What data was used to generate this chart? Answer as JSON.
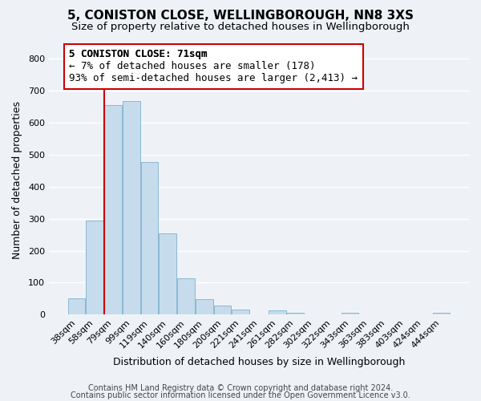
{
  "title": "5, CONISTON CLOSE, WELLINGBOROUGH, NN8 3XS",
  "subtitle": "Size of property relative to detached houses in Wellingborough",
  "xlabel": "Distribution of detached houses by size in Wellingborough",
  "ylabel": "Number of detached properties",
  "bar_labels": [
    "38sqm",
    "58sqm",
    "79sqm",
    "99sqm",
    "119sqm",
    "140sqm",
    "160sqm",
    "180sqm",
    "200sqm",
    "221sqm",
    "241sqm",
    "261sqm",
    "282sqm",
    "302sqm",
    "322sqm",
    "343sqm",
    "363sqm",
    "383sqm",
    "403sqm",
    "424sqm",
    "444sqm"
  ],
  "bar_heights": [
    50,
    295,
    655,
    667,
    478,
    254,
    114,
    49,
    29,
    15,
    0,
    14,
    5,
    0,
    0,
    5,
    0,
    0,
    0,
    0,
    7
  ],
  "bar_color": "#c6dcec",
  "bar_edge_color": "#89b8d4",
  "annotation_title": "5 CONISTON CLOSE: 71sqm",
  "annotation_line1": "← 7% of detached houses are smaller (178)",
  "annotation_line2": "93% of semi-detached houses are larger (2,413) →",
  "annotation_box_facecolor": "#ffffff",
  "annotation_box_edgecolor": "#cc0000",
  "marker_line_color": "#cc0000",
  "ylim": [
    0,
    840
  ],
  "yticks": [
    0,
    100,
    200,
    300,
    400,
    500,
    600,
    700,
    800
  ],
  "footer_line1": "Contains HM Land Registry data © Crown copyright and database right 2024.",
  "footer_line2": "Contains public sector information licensed under the Open Government Licence v3.0.",
  "title_fontsize": 11,
  "subtitle_fontsize": 9.5,
  "axis_label_fontsize": 9,
  "tick_fontsize": 8,
  "annotation_fontsize": 9,
  "footer_fontsize": 7,
  "bg_color": "#eef2f7"
}
